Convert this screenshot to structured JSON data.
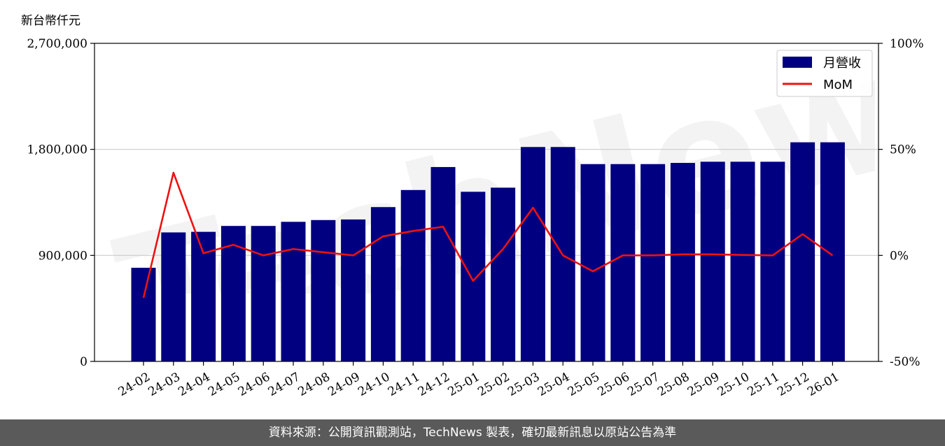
{
  "unit_label": "新台幣仟元",
  "footer_text": "資料來源：公開資訊觀測站，TechNews 製表，確切最新訊息以原站公告為準",
  "watermark_text": "TechNews",
  "colors": {
    "bar": "#000080",
    "line": "#ee1111",
    "grid": "#cccccc",
    "footer_bg": "#5a5a5a"
  },
  "chart_data": {
    "type": "bar",
    "categories": [
      "24-02",
      "24-03",
      "24-04",
      "24-05",
      "24-06",
      "24-07",
      "24-08",
      "24-09",
      "24-10",
      "24-11",
      "24-12",
      "25-01",
      "25-02",
      "25-03",
      "25-04",
      "25-05",
      "25-06",
      "25-07",
      "25-08",
      "25-09",
      "25-10",
      "25-11",
      "25-12",
      "26-01"
    ],
    "series": [
      {
        "name": "月營收",
        "axis": "left",
        "kind": "bar",
        "values": [
          795000,
          1095000,
          1100000,
          1150000,
          1150000,
          1185000,
          1200000,
          1205000,
          1310000,
          1455000,
          1650000,
          1440000,
          1475000,
          1820000,
          1820000,
          1675000,
          1675000,
          1675000,
          1685000,
          1695000,
          1695000,
          1695000,
          1860000,
          1860000
        ]
      },
      {
        "name": "MoM",
        "axis": "right",
        "kind": "line",
        "values": [
          -20,
          39,
          1,
          5,
          0,
          3,
          1.5,
          0,
          9,
          11.5,
          13.5,
          -12,
          3,
          22.5,
          0,
          -7.5,
          0,
          0,
          0.5,
          0.5,
          0.2,
          0,
          10,
          0
        ]
      }
    ],
    "y_left": {
      "ylim": [
        0,
        2700000
      ],
      "ticks": [
        0,
        900000,
        1800000,
        2700000
      ],
      "tick_labels": [
        "0",
        "900,000",
        "1,800,000",
        "2,700,000"
      ]
    },
    "y_right": {
      "ylim": [
        -50,
        100
      ],
      "ticks": [
        -50,
        0,
        50,
        100
      ],
      "tick_labels": [
        "-50%",
        "0%",
        "50%",
        "100%"
      ]
    },
    "grid": "horizontal",
    "legend": "top-right"
  }
}
